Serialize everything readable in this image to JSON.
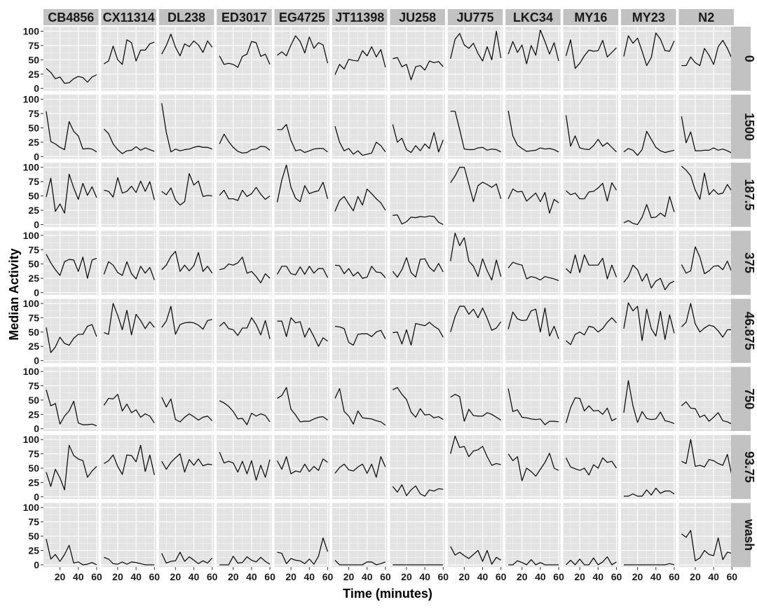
{
  "chart_data": {
    "type": "line",
    "facet": "grid",
    "xlabel": "Time (minutes)",
    "ylabel": "Median Activity",
    "xlim": [
      2,
      62
    ],
    "ylim": [
      -4,
      108
    ],
    "xticks": [
      20,
      40,
      60
    ],
    "yticks": [
      0,
      25,
      50,
      75,
      100
    ],
    "grid": true,
    "colors": {
      "panel_bg": "#e3e3e3",
      "strip_bg": "#c2c2c2",
      "grid": "#ffffff",
      "line": "#000000"
    },
    "columns": [
      "CB4856",
      "CX11314",
      "DL238",
      "ED3017",
      "EG4725",
      "JT11398",
      "JU258",
      "JU775",
      "LKC34",
      "MY16",
      "MY23",
      "N2"
    ],
    "rows": [
      "0",
      "1500",
      "187.5",
      "375",
      "46.875",
      "750",
      "93.75",
      "wash"
    ],
    "x": [
      5,
      10,
      15,
      20,
      25,
      30,
      35,
      40,
      45,
      50,
      55,
      60
    ],
    "panels": {
      "0": {
        "CB4856": [
          35,
          28,
          17,
          20,
          9,
          10,
          17,
          21,
          19,
          11,
          20,
          24
        ],
        "CX11314": [
          43,
          48,
          74,
          50,
          42,
          85,
          80,
          48,
          67,
          67,
          78,
          81
        ],
        "DL238": [
          60,
          75,
          95,
          72,
          57,
          78,
          73,
          83,
          76,
          63,
          83,
          72
        ],
        "ED3017": [
          57,
          42,
          44,
          42,
          37,
          56,
          60,
          82,
          80,
          56,
          60,
          42
        ],
        "EG4725": [
          58,
          64,
          57,
          76,
          92,
          82,
          62,
          90,
          70,
          80,
          76,
          44
        ],
        "JT11398": [
          24,
          42,
          34,
          51,
          49,
          48,
          66,
          57,
          73,
          55,
          68,
          37
        ],
        "JU258": [
          52,
          54,
          38,
          42,
          15,
          38,
          40,
          32,
          48,
          45,
          47,
          38
        ],
        "JU775": [
          52,
          86,
          96,
          76,
          70,
          79,
          61,
          48,
          73,
          50,
          100,
          53
        ],
        "LKC34": [
          60,
          82,
          63,
          76,
          43,
          75,
          58,
          102,
          82,
          60,
          80,
          48
        ],
        "MY16": [
          57,
          85,
          35,
          44,
          57,
          67,
          65,
          66,
          84,
          55,
          63,
          71
        ],
        "MY23": [
          56,
          92,
          79,
          88,
          65,
          40,
          54,
          97,
          86,
          66,
          65,
          83
        ],
        "N2": [
          40,
          40,
          55,
          45,
          40,
          70,
          58,
          42,
          73,
          84,
          70,
          52
        ]
      },
      "1500": {
        "CB4856": [
          79,
          26,
          22,
          16,
          12,
          61,
          44,
          36,
          13,
          14,
          13,
          8
        ],
        "CX11314": [
          48,
          40,
          22,
          12,
          5,
          10,
          11,
          17,
          11,
          15,
          12,
          9
        ],
        "DL238": [
          93,
          42,
          8,
          13,
          10,
          12,
          13,
          16,
          18,
          16,
          16,
          13
        ],
        "ED3017": [
          22,
          39,
          26,
          16,
          9,
          6,
          7,
          12,
          13,
          18,
          17,
          11
        ],
        "EG4725": [
          47,
          47,
          56,
          28,
          10,
          12,
          7,
          10,
          13,
          14,
          14,
          8
        ],
        "JT11398": [
          53,
          25,
          10,
          14,
          4,
          10,
          2,
          4,
          6,
          25,
          19,
          8
        ],
        "JU258": [
          56,
          25,
          32,
          12,
          7,
          19,
          10,
          22,
          14,
          42,
          8,
          29
        ],
        "JU775": [
          79,
          79,
          47,
          13,
          12,
          12,
          15,
          16,
          11,
          13,
          12,
          8
        ],
        "LKC34": [
          80,
          36,
          20,
          14,
          9,
          10,
          11,
          15,
          13,
          14,
          12,
          8
        ],
        "MY16": [
          72,
          18,
          36,
          15,
          13,
          12,
          19,
          30,
          18,
          24,
          16,
          8
        ],
        "MY23": [
          8,
          14,
          11,
          2,
          12,
          44,
          30,
          16,
          10,
          7,
          9,
          11
        ],
        "N2": [
          70,
          24,
          43,
          10,
          10,
          11,
          11,
          15,
          11,
          13,
          10,
          6
        ]
      },
      "187.5": {
        "CB4856": [
          48,
          81,
          23,
          36,
          20,
          88,
          64,
          44,
          72,
          51,
          66,
          47
        ],
        "CX11314": [
          60,
          58,
          48,
          82,
          55,
          58,
          67,
          56,
          76,
          58,
          75,
          43
        ],
        "DL238": [
          58,
          52,
          64,
          43,
          34,
          40,
          89,
          69,
          76,
          49,
          51,
          50
        ],
        "ED3017": [
          51,
          60,
          45,
          45,
          42,
          60,
          49,
          54,
          65,
          53,
          44,
          50
        ],
        "EG4725": [
          39,
          78,
          104,
          65,
          46,
          40,
          68,
          54,
          57,
          59,
          74,
          45
        ],
        "JT11398": [
          23,
          42,
          49,
          36,
          24,
          49,
          34,
          62,
          54,
          45,
          38,
          25
        ],
        "JU258": [
          16,
          17,
          1,
          5,
          13,
          12,
          14,
          13,
          15,
          14,
          4,
          0
        ],
        "JU775": [
          73,
          85,
          100,
          100,
          70,
          40,
          68,
          74,
          70,
          65,
          71,
          45
        ],
        "LKC34": [
          45,
          62,
          57,
          58,
          41,
          48,
          55,
          40,
          56,
          20,
          44,
          38
        ],
        "MY16": [
          59,
          52,
          55,
          45,
          45,
          57,
          58,
          64,
          72,
          41,
          73,
          60
        ],
        "MY23": [
          3,
          7,
          2,
          0,
          13,
          35,
          12,
          13,
          20,
          14,
          49,
          22
        ],
        "N2": [
          102,
          95,
          85,
          60,
          44,
          90,
          52,
          61,
          53,
          55,
          70,
          58
        ]
      },
      "375": {
        "CB4856": [
          67,
          52,
          40,
          30,
          54,
          58,
          57,
          37,
          62,
          25,
          57,
          60
        ],
        "CX11314": [
          32,
          54,
          48,
          35,
          30,
          54,
          33,
          24,
          46,
          34,
          44,
          22
        ],
        "DL238": [
          40,
          48,
          63,
          72,
          37,
          48,
          38,
          47,
          70,
          37,
          46,
          34
        ],
        "ED3017": [
          40,
          42,
          50,
          48,
          52,
          62,
          34,
          37,
          28,
          17,
          33,
          25
        ],
        "EG4725": [
          32,
          46,
          46,
          33,
          31,
          45,
          32,
          46,
          34,
          42,
          42,
          26
        ],
        "JT11398": [
          48,
          47,
          33,
          42,
          29,
          36,
          25,
          27,
          46,
          36,
          35,
          26
        ],
        "JU258": [
          37,
          27,
          40,
          61,
          35,
          27,
          58,
          59,
          44,
          37,
          51,
          36
        ],
        "JU775": [
          55,
          104,
          82,
          96,
          55,
          46,
          28,
          59,
          38,
          22,
          57,
          28
        ],
        "LKC34": [
          43,
          53,
          50,
          48,
          24,
          28,
          26,
          22,
          28,
          26,
          24,
          21
        ],
        "MY16": [
          42,
          34,
          66,
          35,
          66,
          48,
          48,
          48,
          60,
          24,
          48,
          27
        ],
        "MY23": [
          18,
          28,
          48,
          40,
          20,
          33,
          8,
          20,
          25,
          5,
          16,
          20
        ],
        "N2": [
          49,
          34,
          38,
          80,
          62,
          33,
          38,
          46,
          47,
          40,
          55,
          35
        ]
      },
      "46.875": {
        "CB4856": [
          58,
          14,
          24,
          41,
          30,
          27,
          39,
          46,
          46,
          60,
          63,
          42
        ],
        "CX11314": [
          49,
          46,
          100,
          79,
          54,
          88,
          45,
          81,
          70,
          56,
          68,
          58
        ],
        "DL238": [
          58,
          69,
          95,
          46,
          63,
          66,
          67,
          66,
          62,
          55,
          70,
          72
        ],
        "ED3017": [
          60,
          67,
          56,
          54,
          44,
          57,
          57,
          75,
          63,
          45,
          70,
          38
        ],
        "EG4725": [
          69,
          69,
          42,
          75,
          66,
          68,
          41,
          57,
          42,
          25,
          40,
          34
        ],
        "JT11398": [
          60,
          59,
          56,
          32,
          27,
          46,
          47,
          47,
          42,
          50,
          53,
          38
        ],
        "JU258": [
          49,
          50,
          29,
          54,
          27,
          65,
          63,
          61,
          67,
          60,
          55,
          41
        ],
        "JU775": [
          50,
          77,
          95,
          95,
          81,
          90,
          75,
          92,
          74,
          53,
          57,
          68
        ],
        "LKC34": [
          55,
          85,
          73,
          70,
          71,
          87,
          90,
          50,
          92,
          43,
          60,
          38
        ],
        "MY16": [
          35,
          28,
          46,
          50,
          45,
          60,
          58,
          50,
          56,
          67,
          75,
          66
        ],
        "MY23": [
          56,
          101,
          87,
          95,
          35,
          90,
          56,
          43,
          86,
          37,
          80,
          48
        ],
        "N2": [
          59,
          67,
          100,
          64,
          50,
          57,
          62,
          60,
          52,
          41,
          54,
          54
        ]
      },
      "750": {
        "CB4856": [
          68,
          40,
          44,
          8,
          22,
          31,
          48,
          10,
          7,
          7,
          8,
          5
        ],
        "CX11314": [
          41,
          53,
          52,
          60,
          31,
          43,
          28,
          33,
          20,
          26,
          22,
          10
        ],
        "DL238": [
          55,
          38,
          52,
          16,
          12,
          20,
          26,
          21,
          15,
          20,
          22,
          14
        ],
        "ED3017": [
          49,
          45,
          39,
          30,
          17,
          18,
          7,
          27,
          22,
          26,
          23,
          12
        ],
        "EG4725": [
          53,
          58,
          72,
          34,
          24,
          12,
          13,
          13,
          17,
          20,
          21,
          15
        ],
        "JT11398": [
          53,
          70,
          30,
          22,
          8,
          31,
          19,
          18,
          17,
          14,
          12,
          6
        ],
        "JU258": [
          68,
          72,
          60,
          51,
          29,
          20,
          35,
          24,
          25,
          19,
          21,
          16
        ],
        "JU775": [
          55,
          60,
          56,
          13,
          34,
          23,
          22,
          22,
          28,
          25,
          20,
          15
        ],
        "LKC34": [
          70,
          30,
          33,
          20,
          19,
          17,
          16,
          17,
          7,
          13,
          13,
          12
        ],
        "MY16": [
          10,
          37,
          54,
          53,
          31,
          40,
          31,
          32,
          25,
          36,
          14,
          18
        ],
        "MY23": [
          28,
          84,
          40,
          11,
          30,
          18,
          16,
          17,
          29,
          14,
          12,
          9
        ],
        "N2": [
          40,
          47,
          36,
          35,
          20,
          24,
          13,
          20,
          28,
          14,
          12,
          8
        ]
      },
      "93.75": {
        "CB4856": [
          43,
          18,
          48,
          33,
          12,
          90,
          72,
          66,
          63,
          34,
          45,
          53
        ],
        "CX11314": [
          58,
          63,
          73,
          53,
          39,
          73,
          72,
          61,
          90,
          44,
          73,
          38
        ],
        "DL238": [
          62,
          48,
          60,
          68,
          75,
          43,
          65,
          55,
          66,
          54,
          57,
          56
        ],
        "ED3017": [
          78,
          59,
          62,
          59,
          43,
          62,
          40,
          63,
          29,
          55,
          34,
          65
        ],
        "EG4725": [
          63,
          48,
          70,
          40,
          45,
          43,
          57,
          44,
          53,
          46,
          66,
          60
        ],
        "JT11398": [
          41,
          51,
          57,
          47,
          45,
          52,
          57,
          41,
          57,
          34,
          70,
          52
        ],
        "JU258": [
          18,
          8,
          21,
          2,
          12,
          19,
          5,
          1,
          12,
          10,
          14,
          13
        ],
        "JU775": [
          75,
          106,
          86,
          88,
          70,
          80,
          82,
          88,
          70,
          55,
          58,
          56
        ],
        "LKC34": [
          75,
          63,
          70,
          28,
          50,
          44,
          36,
          48,
          60,
          76,
          50,
          46
        ],
        "MY16": [
          68,
          52,
          49,
          46,
          50,
          38,
          56,
          50,
          68,
          60,
          62,
          50
        ],
        "MY23": [
          1,
          1,
          5,
          1,
          1,
          12,
          3,
          15,
          6,
          10,
          10,
          5
        ],
        "N2": [
          62,
          58,
          100,
          53,
          55,
          52,
          65,
          63,
          58,
          55,
          74,
          36
        ]
      },
      "wash": {
        "CB4856": [
          45,
          10,
          18,
          6,
          18,
          34,
          3,
          5,
          0,
          1,
          4,
          0
        ],
        "CX11314": [
          13,
          10,
          2,
          1,
          5,
          1,
          5,
          4,
          2,
          0,
          0,
          0
        ],
        "DL238": [
          20,
          3,
          6,
          7,
          22,
          6,
          14,
          8,
          2,
          7,
          3,
          12
        ],
        "ED3017": [
          0,
          0,
          0,
          15,
          3,
          4,
          14,
          8,
          5,
          13,
          6,
          1
        ],
        "EG4725": [
          22,
          20,
          2,
          11,
          8,
          7,
          2,
          10,
          1,
          15,
          47,
          23
        ],
        "JT11398": [
          8,
          0,
          0,
          0,
          0,
          0,
          0,
          5,
          5,
          0,
          2,
          5
        ],
        "JU258": [
          0,
          0,
          0,
          0,
          0,
          0,
          0,
          0,
          0,
          0,
          0,
          0
        ],
        "JU775": [
          32,
          17,
          22,
          16,
          11,
          18,
          25,
          6,
          25,
          1,
          13,
          8
        ],
        "LKC34": [
          0,
          0,
          7,
          4,
          0,
          9,
          0,
          4,
          0,
          0,
          0,
          0
        ],
        "MY16": [
          0,
          8,
          0,
          10,
          0,
          0,
          12,
          0,
          5,
          14,
          0,
          5
        ],
        "MY23": [
          0,
          0,
          0,
          0,
          0,
          0,
          0,
          0,
          0,
          0,
          2,
          0
        ],
        "N2": [
          54,
          48,
          60,
          7,
          12,
          25,
          18,
          16,
          47,
          9,
          22,
          20
        ]
      }
    }
  }
}
